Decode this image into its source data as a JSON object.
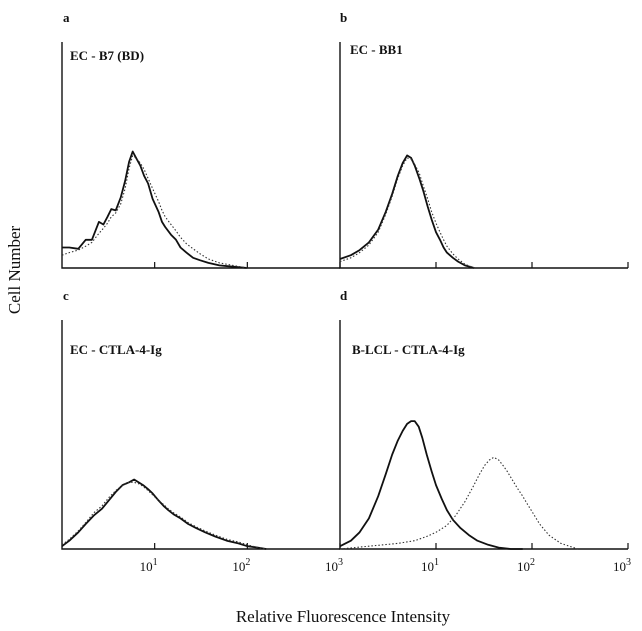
{
  "figure": {
    "ylabel": "Cell Number",
    "xlabel": "Relative Fluorescence Intensity"
  },
  "chart_data": [
    {
      "type": "line",
      "panel": "a",
      "title": "EC - B7 (BD)",
      "x_scale": "log",
      "xlim": [
        1,
        1000
      ],
      "x_ticks": [
        {
          "value": 10,
          "base": "10",
          "exp": "1"
        },
        {
          "value": 100,
          "base": "10",
          "exp": "2"
        },
        {
          "value": 1000,
          "base": "10",
          "exp": "3"
        }
      ],
      "show_tick_labels": false,
      "ylim": [
        0,
        100
      ],
      "series": [
        {
          "style": "solid",
          "x": [
            1.0,
            1.2,
            1.5,
            1.8,
            2.1,
            2.5,
            2.8,
            3.1,
            3.4,
            3.8,
            4.3,
            4.8,
            5.3,
            5.8,
            6.3,
            7.0,
            7.7,
            8.5,
            9.5,
            11,
            12,
            13,
            15,
            17,
            19,
            22,
            26,
            31,
            38,
            50,
            70,
            100
          ],
          "y": [
            16,
            16,
            15,
            22,
            22,
            36,
            34,
            40,
            46,
            45,
            55,
            68,
            83,
            91,
            86,
            80,
            72,
            66,
            54,
            44,
            36,
            32,
            26,
            22,
            16,
            12,
            8,
            6,
            4,
            2,
            1,
            0
          ]
        },
        {
          "style": "dotted",
          "x": [
            1.0,
            1.2,
            1.5,
            1.8,
            2.1,
            2.5,
            2.8,
            3.1,
            3.4,
            3.8,
            4.3,
            4.8,
            5.3,
            5.8,
            6.3,
            7.0,
            7.7,
            8.5,
            9.5,
            11,
            12,
            13,
            15,
            17,
            19,
            22,
            26,
            31,
            38,
            50,
            70,
            100
          ],
          "y": [
            10,
            12,
            14,
            17,
            20,
            27,
            31,
            35,
            40,
            43,
            50,
            62,
            78,
            88,
            86,
            82,
            77,
            70,
            62,
            52,
            45,
            40,
            34,
            29,
            24,
            19,
            15,
            11,
            7,
            4,
            2,
            0
          ]
        }
      ]
    },
    {
      "type": "line",
      "panel": "b",
      "title": "EC - BB1",
      "x_scale": "log",
      "xlim": [
        1,
        1000
      ],
      "x_ticks": [
        {
          "value": 10,
          "base": "10",
          "exp": "1"
        },
        {
          "value": 100,
          "base": "10",
          "exp": "2"
        },
        {
          "value": 1000,
          "base": "10",
          "exp": "3"
        }
      ],
      "show_tick_labels": false,
      "ylim": [
        0,
        100
      ],
      "series": [
        {
          "style": "solid",
          "x": [
            1.0,
            1.3,
            1.6,
            2.0,
            2.5,
            3.0,
            3.5,
            4.0,
            4.5,
            5.0,
            5.5,
            6.0,
            6.7,
            7.4,
            8.2,
            9.0,
            10,
            11,
            12,
            13,
            15,
            17,
            20,
            25
          ],
          "y": [
            7,
            10,
            14,
            20,
            30,
            44,
            58,
            72,
            82,
            88,
            86,
            80,
            70,
            60,
            48,
            38,
            28,
            22,
            16,
            12,
            8,
            5,
            2,
            0
          ]
        },
        {
          "style": "dotted",
          "x": [
            1.0,
            1.3,
            1.6,
            2.0,
            2.5,
            3.0,
            3.5,
            4.0,
            4.5,
            5.0,
            5.5,
            6.0,
            6.7,
            7.4,
            8.2,
            9.0,
            10,
            11,
            12,
            13,
            15,
            17,
            20,
            25
          ],
          "y": [
            5,
            8,
            12,
            18,
            28,
            42,
            56,
            70,
            80,
            86,
            85,
            81,
            74,
            64,
            54,
            44,
            35,
            28,
            22,
            17,
            11,
            7,
            3,
            0
          ]
        }
      ]
    },
    {
      "type": "line",
      "panel": "c",
      "title": "EC - CTLA-4-Ig",
      "x_scale": "log",
      "xlim": [
        1,
        1000
      ],
      "x_ticks": [
        {
          "value": 10,
          "base": "10",
          "exp": "1"
        },
        {
          "value": 100,
          "base": "10",
          "exp": "2"
        },
        {
          "value": 1000,
          "base": "10",
          "exp": "3"
        }
      ],
      "show_tick_labels": true,
      "ylim": [
        0,
        100
      ],
      "series": [
        {
          "style": "solid",
          "x": [
            1.0,
            1.2,
            1.5,
            1.8,
            2.2,
            2.7,
            3.2,
            3.8,
            4.5,
            5.3,
            6.0,
            6.7,
            7.5,
            8.5,
            9.5,
            11,
            12.5,
            14,
            16,
            19,
            23,
            28,
            35,
            45,
            60,
            80,
            100,
            130,
            160
          ],
          "y": [
            2,
            6,
            12,
            18,
            24,
            29,
            35,
            41,
            46,
            48,
            50,
            48,
            46,
            43,
            40,
            35,
            31,
            28,
            25,
            22,
            18,
            15,
            12,
            9,
            6,
            4,
            2,
            1,
            0
          ]
        },
        {
          "style": "dotted",
          "x": [
            1.0,
            1.2,
            1.5,
            1.8,
            2.2,
            2.7,
            3.2,
            3.8,
            4.5,
            5.3,
            6.0,
            6.7,
            7.5,
            8.5,
            9.5,
            11,
            12.5,
            14,
            16,
            19,
            23,
            28,
            35,
            45,
            60,
            80,
            100,
            130,
            160
          ],
          "y": [
            3,
            7,
            13,
            19,
            26,
            31,
            37,
            42,
            46,
            48,
            48,
            47,
            45,
            42,
            39,
            35,
            32,
            29,
            26,
            23,
            19,
            16,
            13,
            10,
            7,
            5,
            3,
            1,
            0
          ]
        }
      ]
    },
    {
      "type": "line",
      "panel": "d",
      "title": "B-LCL - CTLA-4-Ig",
      "x_scale": "log",
      "xlim": [
        1,
        1000
      ],
      "x_ticks": [
        {
          "value": 10,
          "base": "10",
          "exp": "1"
        },
        {
          "value": 100,
          "base": "10",
          "exp": "2"
        },
        {
          "value": 1000,
          "base": "10",
          "exp": "3"
        }
      ],
      "show_tick_labels": true,
      "ylim": [
        0,
        100
      ],
      "series": [
        {
          "style": "solid",
          "x": [
            1.0,
            1.3,
            1.6,
            2.0,
            2.5,
            3.0,
            3.5,
            4.0,
            4.5,
            5.0,
            5.5,
            6.0,
            6.6,
            7.2,
            8.0,
            9.0,
            10,
            11.5,
            13,
            15,
            18,
            22,
            27,
            35,
            45,
            60,
            80
          ],
          "y": [
            2,
            6,
            12,
            22,
            38,
            54,
            68,
            78,
            85,
            90,
            92,
            92,
            88,
            80,
            68,
            56,
            46,
            36,
            28,
            21,
            15,
            10,
            6,
            3,
            1,
            0,
            0
          ]
        },
        {
          "style": "dotted",
          "x": [
            1.0,
            2,
            4,
            6,
            8,
            10,
            13,
            16,
            20,
            24,
            28,
            32,
            36,
            40,
            45,
            50,
            55,
            62,
            70,
            80,
            90,
            100,
            120,
            150,
            200,
            300
          ],
          "y": [
            0,
            2,
            4,
            6,
            9,
            12,
            17,
            24,
            34,
            44,
            53,
            60,
            64,
            66,
            64,
            60,
            56,
            50,
            44,
            38,
            32,
            27,
            18,
            10,
            4,
            0
          ]
        }
      ]
    }
  ]
}
